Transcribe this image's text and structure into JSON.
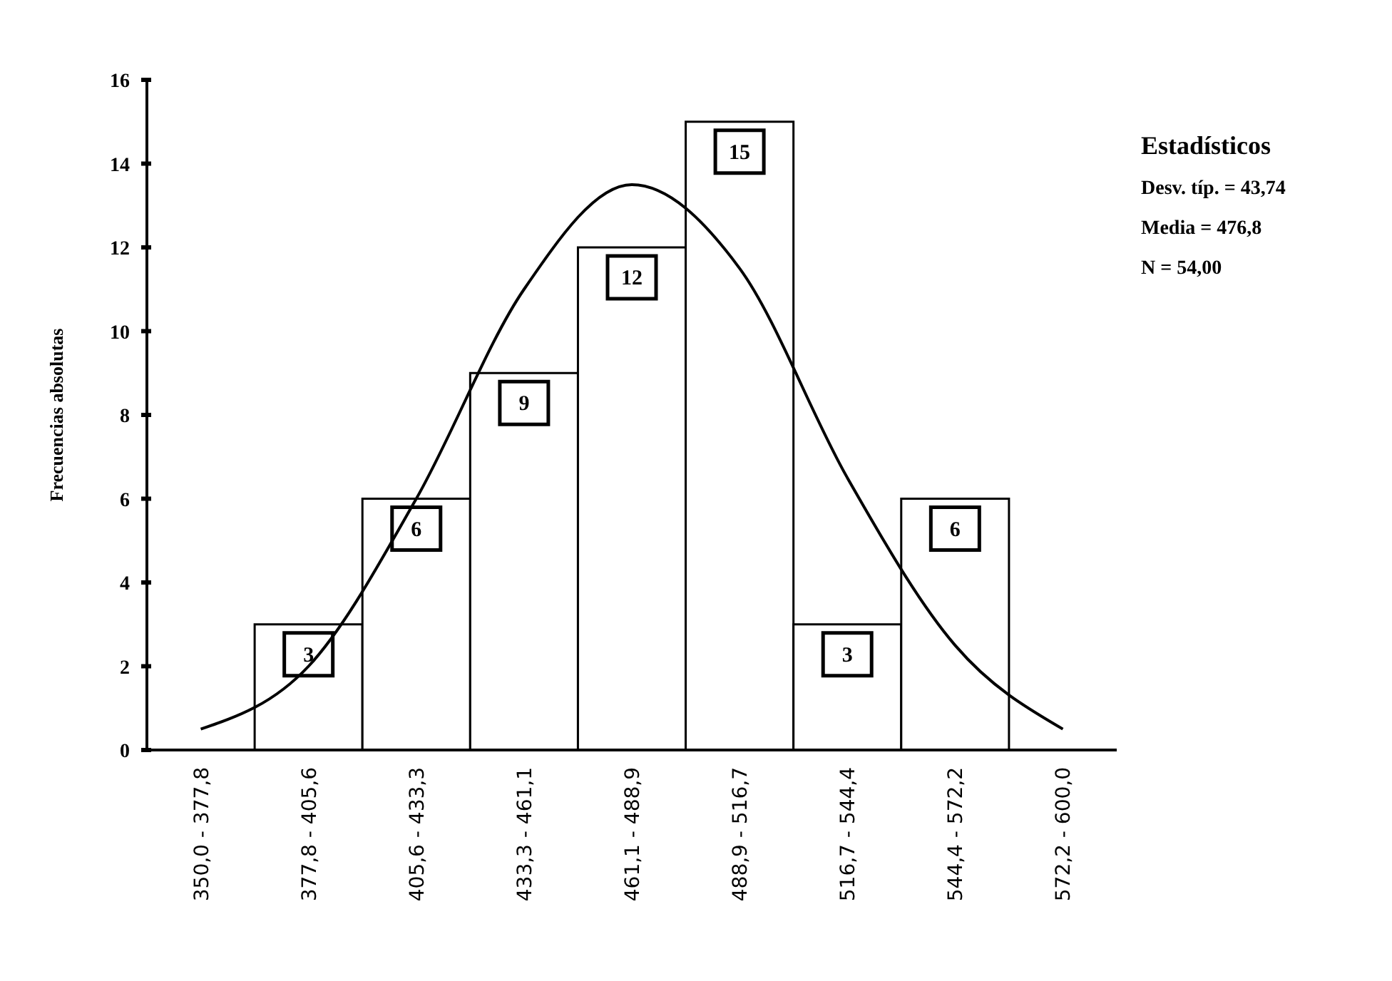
{
  "chart_data": {
    "type": "bar",
    "ylabel": "Frecuencias absolutas",
    "categories": [
      "350,0 - 377,8",
      "377,8 - 405,6",
      "405,6 - 433,3",
      "433,3 - 461,1",
      "461,1 - 488,9",
      "488,9 - 516,7",
      "516,7 - 544,4",
      "544,4 - 572,2",
      "572,2 - 600,0"
    ],
    "series": [
      {
        "color": "#ffffff",
        "values": [
          0,
          3,
          6,
          9,
          12,
          15,
          3,
          6,
          0
        ],
        "value_labels": [
          null,
          "3",
          "6",
          "9",
          "12",
          "15",
          "3",
          "6",
          null
        ]
      },
      {
        "type": "line",
        "color": "#000000",
        "values": [
          0.5,
          2,
          6,
          11,
          13.5,
          11.5,
          6.5,
          2.5,
          0.5
        ]
      }
    ],
    "ylim": [
      0,
      16
    ],
    "yticks": [
      0,
      2,
      4,
      6,
      8,
      10,
      12,
      14,
      16
    ],
    "grid": false,
    "marker": "none",
    "line_style": "solid",
    "annotations": [
      "Estadísticos",
      "Desv. típ. = 43,74",
      "Media = 476,8",
      "N = 54,00"
    ]
  }
}
